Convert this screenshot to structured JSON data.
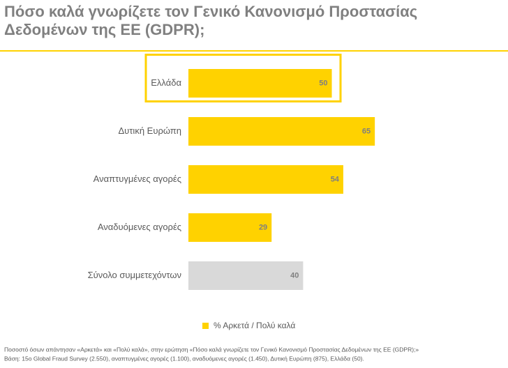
{
  "chart_data": {
    "type": "bar",
    "orientation": "horizontal",
    "title": [
      "Πόσο καλά γνωρίζετε τον Γενικό Κανονισμό Προστασίας",
      "Δεδομένων της ΕΕ (GDPR);"
    ],
    "categories": [
      "Ελλάδα",
      "Δυτική Ευρώπη",
      "Αναπτυγμένες αγορές",
      "Αναδυόμενες αγορές",
      "Σύνολο συμμετεχόντων"
    ],
    "series": [
      {
        "name": "% Αρκετά / Πολύ καλά",
        "color": "#ffd200",
        "values": [
          50,
          65,
          54,
          29,
          40
        ],
        "colors": [
          "#ffd200",
          "#ffd200",
          "#ffd200",
          "#ffd200",
          "#d9d9d9"
        ]
      }
    ],
    "highlight_index": 0,
    "footnotes": [
      "Ποσοστό όσων απάντησαν «Αρκετά» και «Πολύ καλά», στην ερώτηση «Πόσο καλά γνωρίζετε τον Γενικό Κανονισμό Προστασίας Δεδομένων της ΕΕ (GDPR);»",
      "Βάση: 15ο Global Fraud Survey (2.550), αναπτυγμένες αγορές (1.100), αναδυόμενες αγορές (1.450), Δυτική Ευρώπη (875), Ελλάδα (50)."
    ]
  }
}
